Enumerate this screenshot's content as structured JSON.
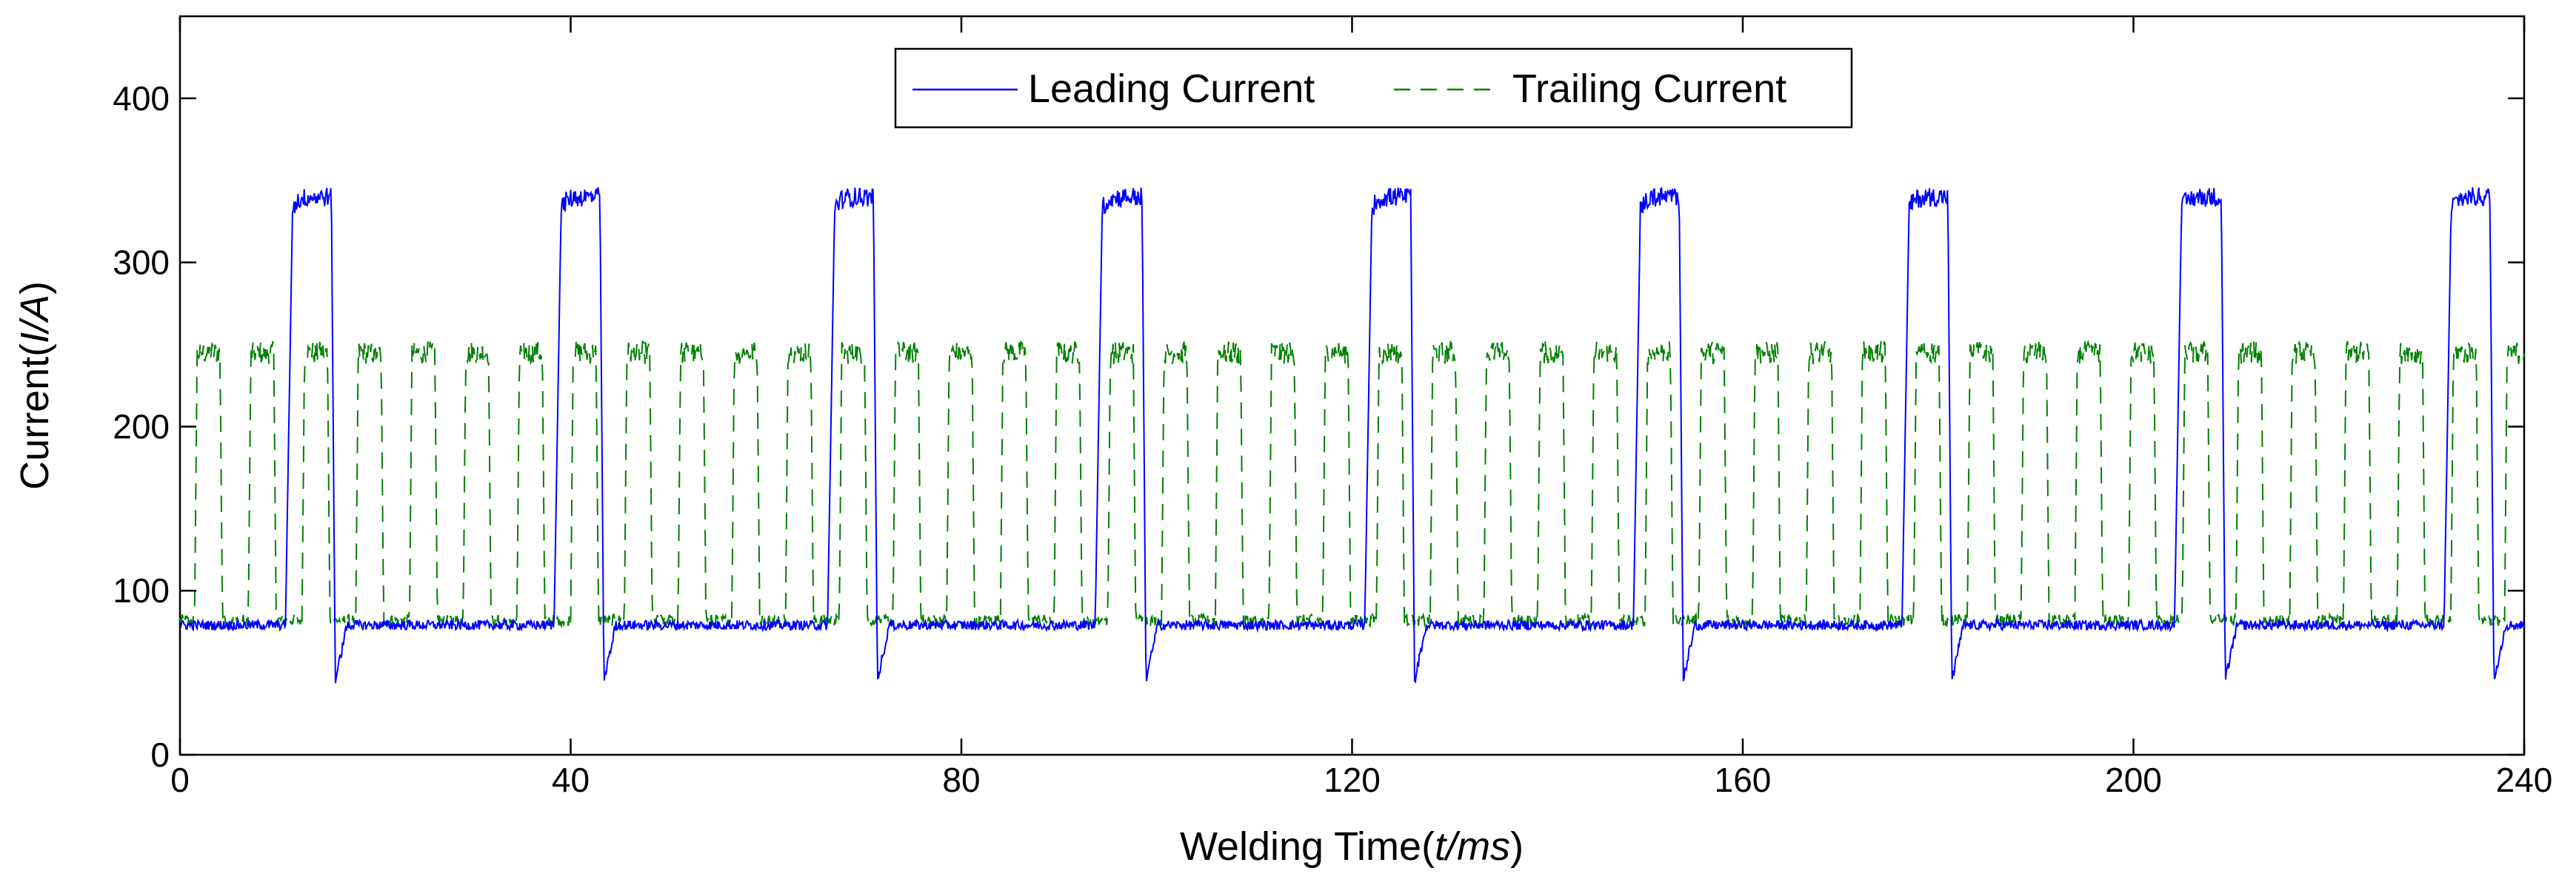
{
  "chart_data": {
    "type": "line",
    "xlabel_main": "Welding Time",
    "xlabel_unit": "t/ms",
    "ylabel_main": "Current",
    "ylabel_unit": "I/A",
    "xlim": [
      0,
      240
    ],
    "ylim": [
      0,
      450
    ],
    "x_ticks": [
      "0",
      "40",
      "80",
      "120",
      "160",
      "200",
      "240"
    ],
    "y_ticks": [
      "0",
      "100",
      "200",
      "300",
      "400"
    ],
    "grid": false,
    "legend_position": "top-center",
    "series": [
      {
        "name": "Leading Current",
        "color": "#0000ff",
        "style": "solid",
        "base": 79,
        "peak": 340,
        "pulses": [
          {
            "start": 10.8,
            "end": 15.5
          },
          {
            "start": 38.3,
            "end": 43.0
          },
          {
            "start": 66.3,
            "end": 71.0
          },
          {
            "start": 93.7,
            "end": 98.5
          },
          {
            "start": 121.3,
            "end": 126.0
          },
          {
            "start": 148.8,
            "end": 153.5
          },
          {
            "start": 176.3,
            "end": 181.0
          },
          {
            "start": 204.2,
            "end": 209.0
          },
          {
            "start": 231.8,
            "end": 236.5
          }
        ]
      },
      {
        "name": "Trailing Current",
        "color": "#008000",
        "style": "dashed",
        "base": 82,
        "peak": 245,
        "pulse_period": 5.5,
        "pulse_width": 2.6,
        "first_pulse_start": 1.5
      }
    ]
  }
}
